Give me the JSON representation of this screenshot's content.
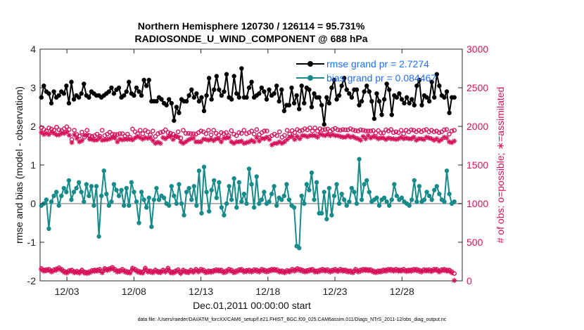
{
  "chart_data": {
    "type": "line",
    "title": "Northern Hemisphere 120730 / 126114 = 95.731%",
    "subtitle": "RADIOSONDE_U_WIND_COMPONENT @ 688 hPa",
    "xlabel": "Dec.01,2011 00:00:00 start",
    "ylabel": "rmse and bias (model - observation)",
    "ylabel_right": "# of obs: o=possible; ∗=assimilated",
    "ylim": [
      -2,
      4
    ],
    "ylim_right": [
      0,
      3000
    ],
    "yticks": [
      "-2",
      "-1",
      "0",
      "1",
      "2",
      "3",
      "4"
    ],
    "yticks_right": [
      "0",
      "500",
      "1000",
      "1500",
      "2000",
      "2500",
      "3000"
    ],
    "x_range_days": [
      0.0,
      31.5
    ],
    "xticks": [
      {
        "day": 2.0,
        "label": "12/03"
      },
      {
        "day": 7.0,
        "label": "12/08"
      },
      {
        "day": 12.0,
        "label": "12/13"
      },
      {
        "day": 17.0,
        "label": "12/18"
      },
      {
        "day": 22.0,
        "label": "12/23"
      },
      {
        "day": 27.0,
        "label": "12/28"
      }
    ],
    "footnote": "data file: /Users/raeder/DAI/ATM_forcXX/CAM6_setup/f.e21.FHIST_BGC.f09_025.CAM6assim.011/Diags_NTrS_2011-12/obs_diag_output.nc",
    "legend": [
      {
        "name": "rmse grand pr = 2.7274",
        "color": "#000000"
      },
      {
        "name": "bias grand pr = 0.084467",
        "color": "#178a8a"
      }
    ],
    "series": [
      {
        "name": "rmse",
        "color": "#000000",
        "values": [
          2.75,
          3.05,
          2.9,
          2.85,
          2.6,
          2.9,
          2.75,
          2.8,
          2.9,
          2.85,
          3.05,
          2.6,
          3.15,
          2.7,
          2.8,
          2.75,
          2.85,
          3.1,
          2.8,
          2.75,
          2.9,
          2.85,
          2.8,
          2.8,
          2.75,
          2.8,
          2.85,
          2.9,
          3.0,
          2.85,
          2.95,
          3.0,
          2.75,
          2.8,
          2.9,
          3.15,
          2.85,
          2.8,
          3.0,
          2.9,
          2.8,
          3.2,
          3.05,
          3.2,
          2.65,
          2.65,
          2.65,
          2.75,
          2.7,
          2.6,
          2.55,
          2.7,
          2.6,
          2.15,
          2.5,
          2.35,
          2.7,
          2.65,
          2.65,
          2.8,
          2.95,
          2.75,
          2.85,
          2.65,
          2.75,
          2.4,
          2.8,
          3.25,
          2.7,
          2.95,
          3.3,
          2.95,
          2.8,
          2.9,
          3.35,
          2.75,
          2.7,
          3.3,
          2.85,
          2.75,
          3.5,
          2.75,
          2.75,
          3.0,
          3.15,
          2.75,
          2.8,
          2.85,
          3.0,
          2.9,
          2.7,
          2.95,
          2.8,
          2.85,
          3.05,
          2.65,
          2.95,
          2.4,
          2.55,
          2.55,
          3.0,
          2.6,
          2.8,
          2.45,
          3.05,
          2.6,
          3.0,
          2.95,
          2.5,
          2.85,
          2.75,
          2.75,
          2.55,
          2.05,
          2.75,
          2.6,
          3.0,
          3.2,
          2.7,
          2.8,
          3.05,
          3.25,
          2.95,
          2.85,
          2.75,
          2.95,
          2.95,
          2.55,
          2.65,
          2.9,
          3.05,
          2.9,
          2.65,
          2.2,
          2.85,
          2.65,
          2.3,
          2.7,
          3.1,
          2.95,
          2.3,
          2.8,
          2.75,
          2.85,
          2.7,
          2.6,
          2.75,
          2.6,
          2.7,
          2.55,
          3.05,
          3.2,
          2.55,
          2.8,
          2.75,
          2.65,
          3.15,
          2.75,
          3.35,
          3.05,
          2.8,
          2.75,
          2.9,
          2.35,
          2.75,
          2.75
        ]
      },
      {
        "name": "bias",
        "color": "#178a8a",
        "values": [
          -0.05,
          0.0,
          0.1,
          -0.65,
          0.05,
          0.2,
          0.3,
          -0.05,
          0.2,
          0.4,
          0.3,
          0.6,
          0.1,
          0.3,
          0.4,
          0.55,
          0.3,
          0.05,
          0.5,
          0.2,
          0.45,
          -0.05,
          0.45,
          -0.85,
          0.2,
          0.85,
          0.25,
          -0.05,
          0.05,
          0.5,
          0.35,
          0.2,
          0.35,
          -0.05,
          0.4,
          -0.05,
          0.55,
          0.3,
          0.05,
          -0.5,
          0.3,
          0.1,
          -0.1,
          0.15,
          -0.6,
          0.1,
          0.4,
          0.1,
          0.2,
          0.15,
          0.0,
          -0.05,
          0.45,
          0.2,
          0.0,
          0.5,
          0.0,
          -0.3,
          0.3,
          0.4,
          0.1,
          0.45,
          -0.05,
          0.85,
          -0.25,
          0.95,
          0.3,
          -0.2,
          0.35,
          0.6,
          0.15,
          0.55,
          -0.1,
          -0.3,
          0.0,
          0.45,
          0.1,
          0.65,
          -0.1,
          0.55,
          0.05,
          0.25,
          0.0,
          0.9,
          0.5,
          -0.1,
          0.7,
          0.0,
          0.1,
          0.3,
          0.0,
          0.05,
          0.25,
          0.45,
          -0.05,
          0.15,
          0.1,
          0.2,
          0.5,
          0.1,
          -0.05,
          -0.1,
          -1.1,
          -1.15,
          0.2,
          0.0,
          0.5,
          0.35,
          0.8,
          0.1,
          0.55,
          -0.25,
          -0.25,
          0.3,
          -0.4,
          0.4,
          -0.3,
          0.2,
          0.5,
          0.0,
          0.25,
          0.1,
          -0.05,
          0.05,
          0.4,
          0.3,
          0.0,
          1.15,
          0.1,
          0.5,
          0.6,
          0.3,
          0.05,
          0.1,
          0.15,
          -0.05,
          0.1,
          0.15,
          0.05,
          -0.05,
          0.1,
          0.5,
          0.2,
          0.1,
          0.15,
          0.05,
          0.0,
          -0.05,
          0.1,
          0.6,
          0.05,
          0.45,
          0.05,
          0.1,
          0.3,
          0.2,
          0.1,
          0.35,
          0.45,
          0.25,
          0.1,
          0.05,
          0.85,
          0.25,
          0.0,
          0.05
        ]
      },
      {
        "name": "obs possible",
        "color": "#d6125a",
        "marker": "o",
        "values": [
          1985,
          1960,
          1940,
          1980,
          1965,
          1950,
          1990,
          1955,
          1945,
          1970,
          1995,
          1960,
          1830,
          1950,
          1895,
          1875,
          1925,
          1860,
          1950,
          1880,
          1870,
          1880,
          1900,
          1875,
          1950,
          1880,
          1900,
          1925,
          1900,
          1895,
          1895,
          1905,
          1905,
          1875,
          1900,
          1860,
          1965,
          1930,
          1905,
          1950,
          1905,
          1950,
          1930,
          1890,
          1940,
          1870,
          1905,
          1920,
          1930,
          1955,
          1920,
          1910,
          1900,
          1875,
          1930,
          1850,
          1950,
          1910,
          1910,
          1905,
          1905,
          1900,
          1920,
          1940,
          1930,
          1905,
          1950,
          1890,
          1950,
          1910,
          1890,
          1920,
          1905,
          1920,
          1880,
          1945,
          1900,
          1880,
          1920,
          1910,
          1950,
          1905,
          1920,
          1940,
          1900,
          1960,
          1895,
          1920,
          1940,
          1940,
          1860,
          1880,
          1900,
          1880,
          1930,
          1860,
          1885,
          1950,
          1900,
          1945,
          1920,
          1960,
          1940,
          1950,
          1970,
          1955,
          1980,
          1940,
          1980,
          1940,
          1970,
          1955,
          1960,
          1965,
          1940,
          1960,
          1975,
          1955,
          1950,
          1960,
          1955,
          1955,
          1970,
          1955,
          1945,
          1940,
          1955,
          1950,
          1940,
          1940,
          1940,
          1945,
          1915,
          1945,
          1915,
          1915,
          1955,
          1940,
          1960,
          1920,
          1930,
          1920,
          1950,
          1905,
          1950,
          1930,
          1955,
          1950,
          1930,
          1950,
          1930,
          1950,
          1960,
          1930,
          1950,
          1930,
          1940,
          1920,
          1930,
          1955,
          1960,
          1900,
          1940,
          1950
        ]
      },
      {
        "name": "obs assimilated",
        "color": "#d6125a",
        "marker": "*",
        "values": [
          1920,
          1895,
          1910,
          1895,
          1925,
          1910,
          1890,
          1890,
          1910,
          1910,
          1925,
          1885,
          1790,
          1890,
          1845,
          1800,
          1815,
          1885,
          1890,
          1835,
          1830,
          1820,
          1825,
          1855,
          1820,
          1825,
          1830,
          1840,
          1855,
          1850,
          1800,
          1835,
          1825,
          1835,
          1830,
          1835,
          1825,
          1850,
          1870,
          1855,
          1835,
          1855,
          1845,
          1855,
          1815,
          1780,
          1795,
          1780,
          1855,
          1840,
          1865,
          1870,
          1830,
          1870,
          1860,
          1800,
          1780,
          1800,
          1825,
          1840,
          1850,
          1800,
          1800,
          1800,
          1835,
          1830,
          1820,
          1835,
          1815,
          1840,
          1840,
          1800,
          1845,
          1850,
          1855,
          1800,
          1780,
          1800,
          1800,
          1810,
          1780,
          1790,
          1800,
          1820,
          1800,
          1855,
          1810,
          1845,
          1840,
          1860,
          1830,
          1760,
          1780,
          1780,
          1800,
          1780,
          1800,
          1830,
          1860,
          1870,
          1830,
          1870,
          1840,
          1880,
          1880,
          1865,
          1880,
          1880,
          1880,
          1860,
          1900,
          1890,
          1880,
          1900,
          1880,
          1895,
          1880,
          1880,
          1870,
          1860,
          1860,
          1880,
          1860,
          1870,
          1850,
          1840,
          1820,
          1870,
          1840,
          1880,
          1850,
          1870,
          1860,
          1840,
          1850,
          1850,
          1830,
          1850,
          1840,
          1840,
          1830,
          1840,
          1860,
          1840,
          1850,
          1840,
          1840,
          1860,
          1820,
          1840,
          1840,
          1830,
          1860,
          1850,
          1840,
          1820,
          1840,
          1810,
          1830,
          1860,
          1850,
          1800,
          1790,
          1810
        ]
      },
      {
        "name": "obs possible (bottom band)",
        "color": "#d6125a",
        "marker": "o",
        "values": [
          160,
          140,
          145,
          150,
          130,
          145,
          155,
          170,
          150,
          125,
          115,
          135,
          140,
          120,
          125,
          115,
          140,
          115,
          110,
          120,
          135,
          140,
          140,
          150,
          120,
          160,
          150,
          160,
          175,
          150,
          130,
          135,
          150,
          130,
          120,
          115,
          165,
          150,
          130,
          120,
          115,
          165,
          130,
          130,
          120,
          140,
          125,
          120,
          140,
          130,
          165,
          120,
          115,
          130,
          145,
          110,
          140,
          125,
          120,
          140,
          125,
          150,
          130,
          150,
          140,
          120,
          130,
          125,
          135,
          145,
          140,
          140,
          120,
          130,
          150,
          140,
          120,
          130,
          145,
          150,
          130,
          135,
          140,
          130,
          145,
          140,
          130,
          150,
          140,
          130,
          140,
          150,
          150,
          145,
          130,
          130,
          120,
          135,
          130,
          150,
          140,
          160,
          150,
          140,
          130,
          135,
          145,
          150,
          130,
          130,
          140,
          150,
          140,
          145,
          130,
          140,
          150,
          135,
          150,
          140,
          140,
          130,
          130,
          120,
          150,
          130,
          140,
          150,
          150,
          145,
          145,
          130,
          120,
          130,
          130,
          140,
          140,
          150,
          150,
          140,
          150,
          140,
          140,
          150,
          135,
          140,
          140,
          150,
          150,
          140,
          130,
          145,
          140,
          145,
          135,
          150,
          150,
          130,
          145,
          150,
          140,
          140,
          120,
          95
        ]
      },
      {
        "name": "obs assimilated (bottom band)",
        "color": "#d6125a",
        "marker": "*",
        "values": [
          145,
          125,
          130,
          135,
          115,
          130,
          140,
          155,
          135,
          110,
          100,
          120,
          125,
          105,
          110,
          100,
          125,
          100,
          95,
          105,
          120,
          125,
          125,
          135,
          105,
          145,
          135,
          145,
          160,
          135,
          115,
          120,
          135,
          115,
          105,
          100,
          150,
          135,
          115,
          105,
          100,
          150,
          115,
          115,
          105,
          125,
          110,
          105,
          125,
          115,
          150,
          105,
          100,
          115,
          130,
          95,
          125,
          110,
          105,
          125,
          110,
          135,
          115,
          135,
          125,
          105,
          115,
          110,
          120,
          130,
          125,
          125,
          105,
          115,
          135,
          125,
          105,
          115,
          130,
          135,
          115,
          120,
          125,
          115,
          130,
          125,
          115,
          135,
          125,
          115,
          125,
          135,
          135,
          130,
          115,
          115,
          105,
          120,
          115,
          135,
          125,
          145,
          135,
          125,
          115,
          120,
          130,
          135,
          115,
          115,
          125,
          135,
          125,
          130,
          115,
          125,
          135,
          120,
          135,
          125,
          125,
          115,
          115,
          105,
          135,
          115,
          125,
          135,
          135,
          130,
          130,
          115,
          105,
          115,
          115,
          125,
          125,
          135,
          135,
          125,
          135,
          125,
          125,
          135,
          120,
          125,
          125,
          135,
          135,
          125,
          115,
          130,
          125,
          130,
          120,
          135,
          135,
          115,
          130,
          135,
          125,
          125,
          105,
          5
        ]
      }
    ]
  }
}
